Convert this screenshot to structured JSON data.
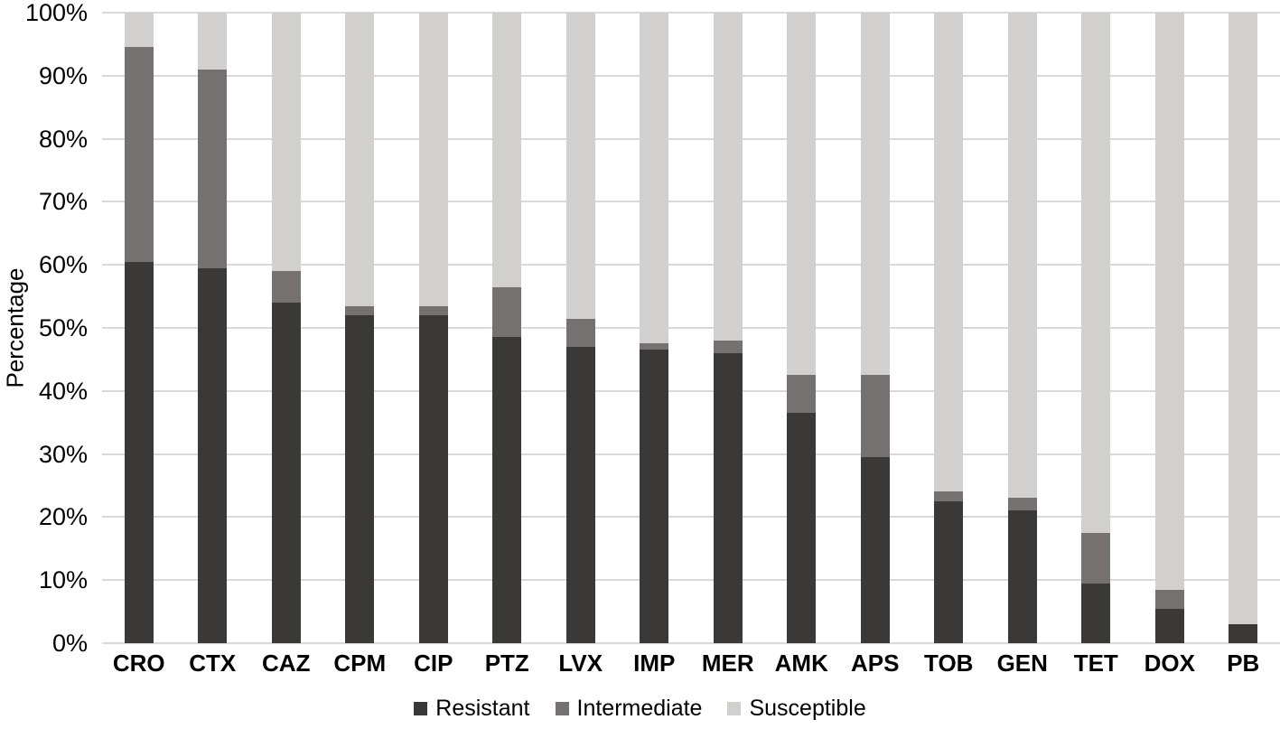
{
  "chart_data": {
    "type": "bar",
    "stacked": true,
    "title": "",
    "xlabel": "",
    "ylabel": "Percentage",
    "categories": [
      "CRO",
      "CTX",
      "CAZ",
      "CPM",
      "CIP",
      "PTZ",
      "LVX",
      "IMP",
      "MER",
      "AMK",
      "APS",
      "TOB",
      "GEN",
      "TET",
      "DOX",
      "PB"
    ],
    "series": [
      {
        "name": "Resistant",
        "color": "#3B3838",
        "values": [
          60.5,
          59.5,
          54,
          52,
          52,
          48.5,
          47,
          46.5,
          46,
          36.5,
          29.5,
          22.5,
          21,
          9.5,
          5.5,
          3
        ]
      },
      {
        "name": "Intermediate",
        "color": "#767171",
        "values": [
          34,
          31.5,
          5,
          1.5,
          1.5,
          8,
          4.5,
          1,
          2,
          6,
          13,
          1.5,
          2,
          8,
          3,
          0
        ]
      },
      {
        "name": "Susceptible",
        "color": "#D2CFCF",
        "values": [
          5.5,
          9,
          41,
          46.5,
          46.5,
          43.5,
          48.5,
          52.5,
          52,
          57.5,
          57.5,
          76,
          77,
          82.5,
          91.5,
          97
        ]
      }
    ],
    "ylim": [
      0,
      100
    ],
    "ytick_step": 10,
    "ytick_suffix": "%",
    "grid": true,
    "gridline_color": "#D9D9D9",
    "legend_position": "bottom",
    "background_color": "#FFFFFF"
  }
}
